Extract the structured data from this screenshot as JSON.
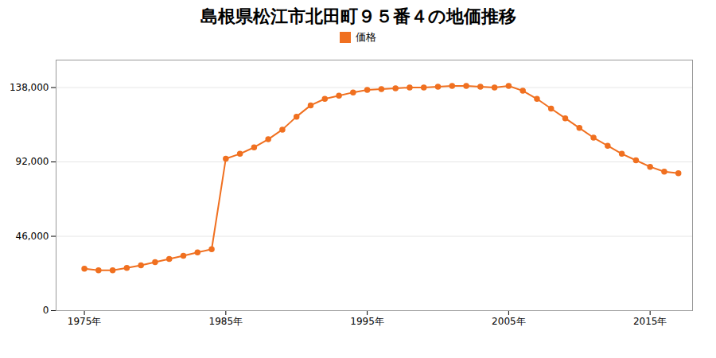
{
  "chart_data": {
    "type": "line",
    "title": "島根県松江市北田町９５番４の地価推移",
    "x": [
      1975,
      1976,
      1977,
      1978,
      1979,
      1980,
      1981,
      1982,
      1983,
      1984,
      1985,
      1986,
      1987,
      1988,
      1989,
      1990,
      1991,
      1992,
      1993,
      1994,
      1995,
      1996,
      1997,
      1998,
      1999,
      2000,
      2001,
      2002,
      2003,
      2004,
      2005,
      2006,
      2007,
      2008,
      2009,
      2010,
      2011,
      2012,
      2013,
      2014,
      2015,
      2016,
      2017
    ],
    "series": [
      {
        "name": "価格",
        "color": "#F07020",
        "marker": "circle",
        "line_style": "solid",
        "values": [
          26000,
          25000,
          25000,
          26500,
          28000,
          30000,
          32000,
          34000,
          36000,
          38000,
          94000,
          97000,
          101000,
          106000,
          112000,
          120000,
          127000,
          131000,
          133000,
          135000,
          136500,
          137000,
          137500,
          138000,
          138000,
          138500,
          139000,
          139000,
          138500,
          138000,
          139000,
          136000,
          131000,
          125000,
          119000,
          113000,
          107000,
          102000,
          97000,
          93000,
          89000,
          86000,
          85000
        ]
      }
    ],
    "xlim": [
      1973,
      2018
    ],
    "xticks": [
      {
        "value": 1975,
        "label": "1975年"
      },
      {
        "value": 1985,
        "label": "1985年"
      },
      {
        "value": 1995,
        "label": "1995年"
      },
      {
        "value": 2005,
        "label": "2005年"
      },
      {
        "value": 2015,
        "label": "2015年"
      }
    ],
    "ylim": [
      0,
      155000
    ],
    "yticks": [
      0,
      {
        "value": 46000,
        "label": "46,000"
      },
      {
        "value": 92000,
        "label": "92,000"
      },
      {
        "value": 138000,
        "label": "138,000"
      }
    ],
    "grid": true,
    "legend": "top"
  }
}
